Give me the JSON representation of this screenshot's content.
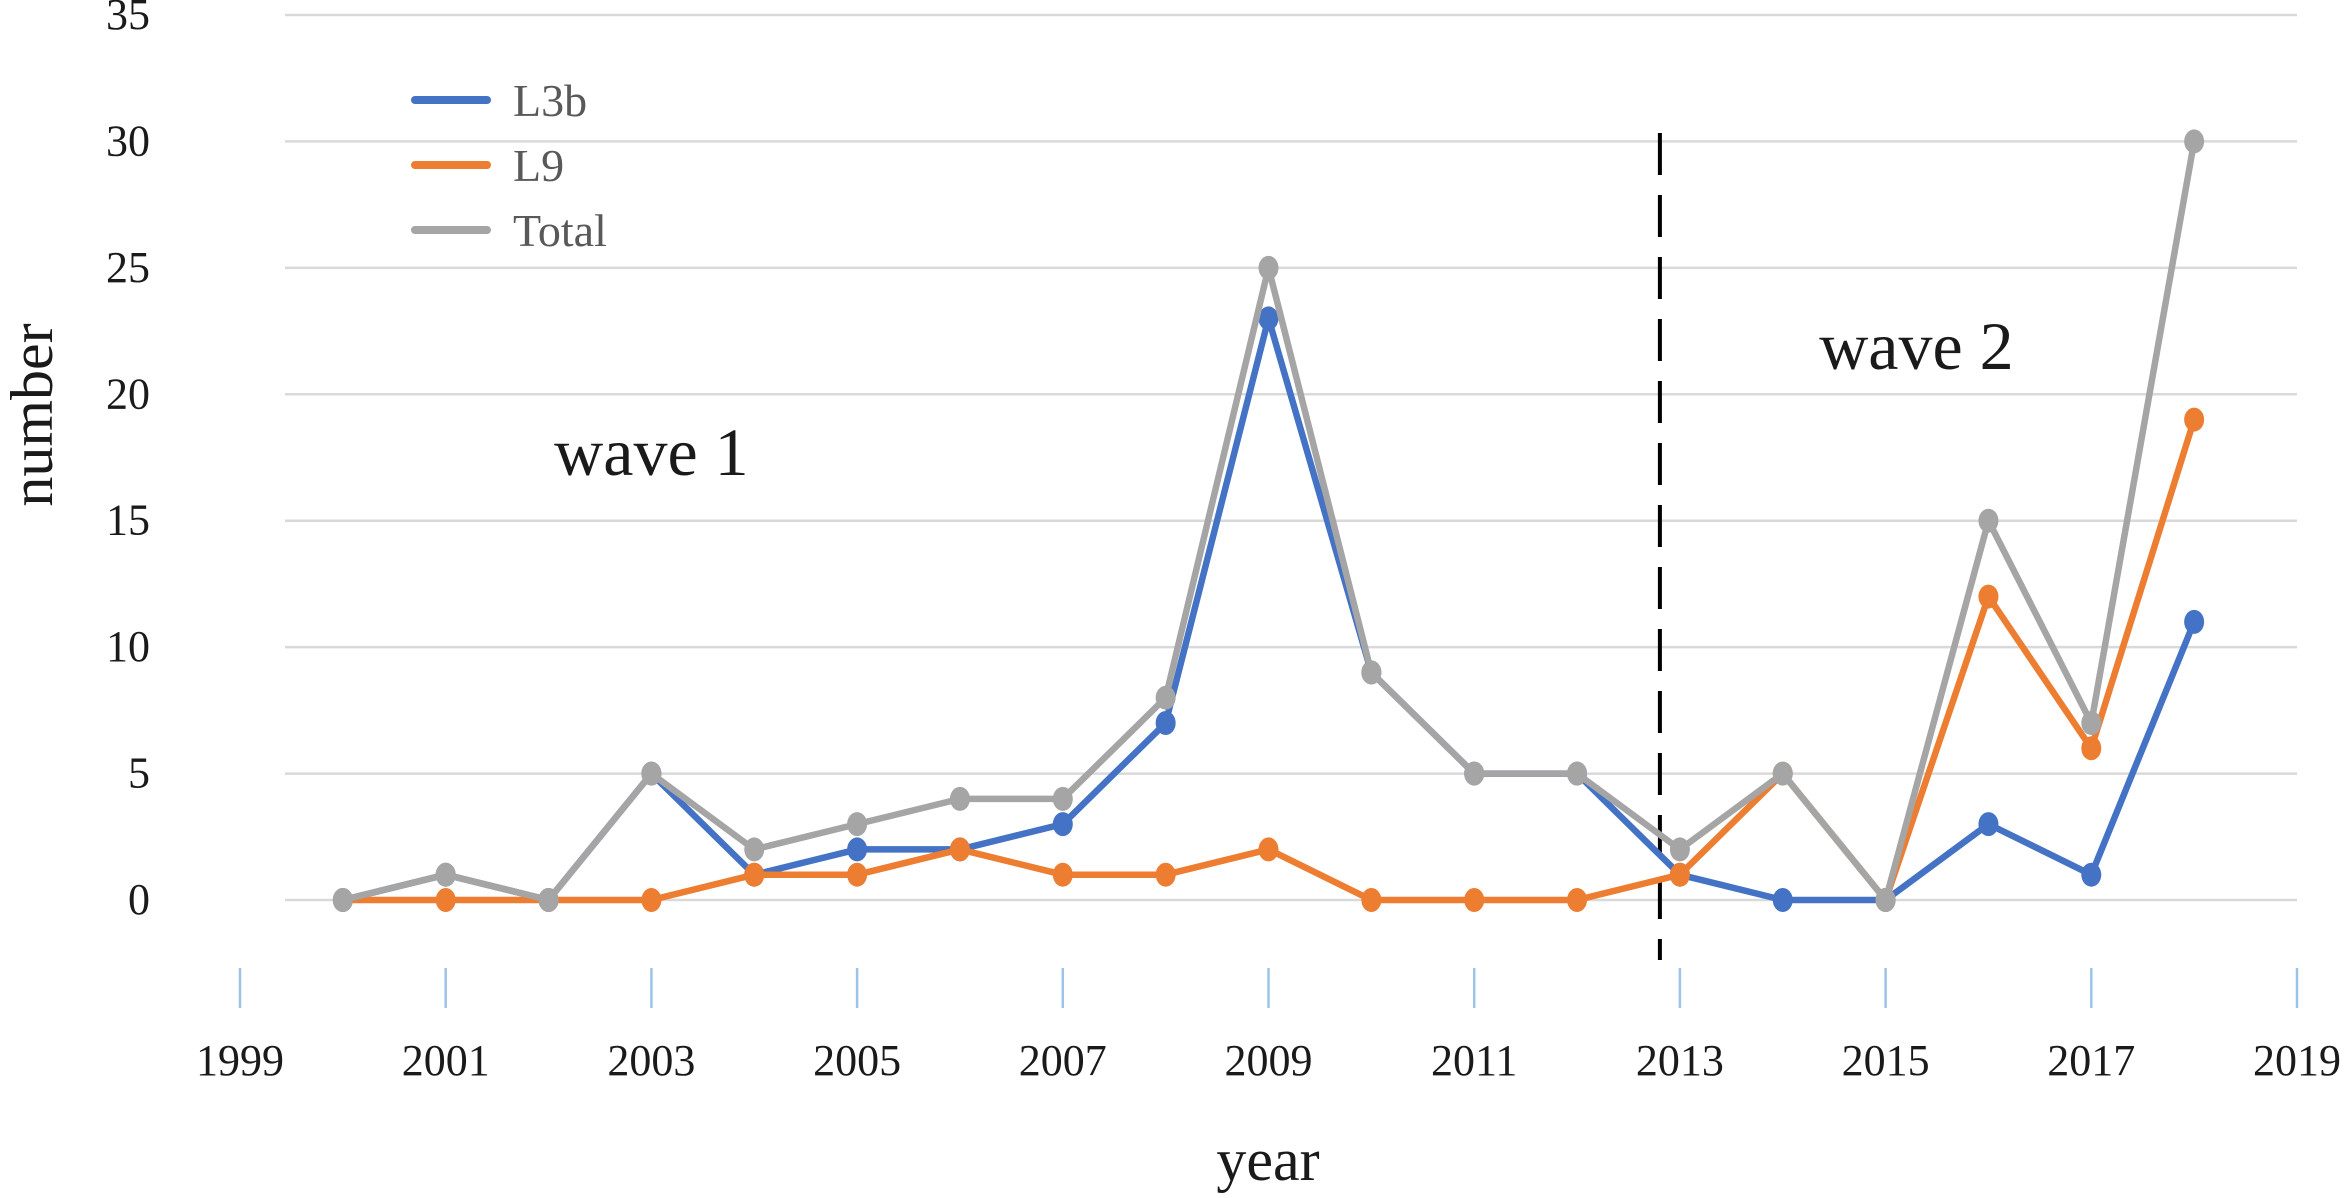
{
  "chart_data": {
    "type": "line",
    "xlabel": "year",
    "ylabel": "number",
    "xlim": [
      1999,
      2019
    ],
    "ylim": [
      0,
      35
    ],
    "grid": true,
    "legend_position": "top-left",
    "y_ticks": [
      "0",
      "5",
      "10",
      "15",
      "20",
      "25",
      "30",
      "35"
    ],
    "x_ticks": [
      "1999",
      "2001",
      "2003",
      "2005",
      "2007",
      "2009",
      "2011",
      "2013",
      "2015",
      "2017",
      "2019"
    ],
    "x": [
      2000,
      2001,
      2002,
      2003,
      2004,
      2005,
      2006,
      2007,
      2008,
      2009,
      2010,
      2011,
      2012,
      2013,
      2014,
      2015,
      2016,
      2017,
      2018
    ],
    "series": [
      {
        "name": "L3b",
        "color": "#4472c4",
        "values": [
          0,
          1,
          0,
          5,
          1,
          2,
          2,
          3,
          7,
          23,
          9,
          5,
          5,
          1,
          0,
          0,
          3,
          1,
          11
        ]
      },
      {
        "name": "L9",
        "color": "#ed7d31",
        "values": [
          0,
          0,
          0,
          0,
          1,
          1,
          2,
          1,
          1,
          2,
          0,
          0,
          0,
          1,
          5,
          0,
          12,
          6,
          19
        ]
      },
      {
        "name": "Total",
        "color": "#a5a5a5",
        "values": [
          0,
          1,
          0,
          5,
          2,
          3,
          4,
          4,
          8,
          25,
          9,
          5,
          5,
          2,
          5,
          0,
          15,
          7,
          30
        ]
      }
    ],
    "annotations": [
      {
        "text": "wave 1",
        "x": 2003.0,
        "y": 16.8
      },
      {
        "text": "wave 2",
        "x": 2015.3,
        "y": 21.0
      }
    ],
    "divider": {
      "x": 2013,
      "style": "dashed",
      "color": "#000000"
    }
  }
}
